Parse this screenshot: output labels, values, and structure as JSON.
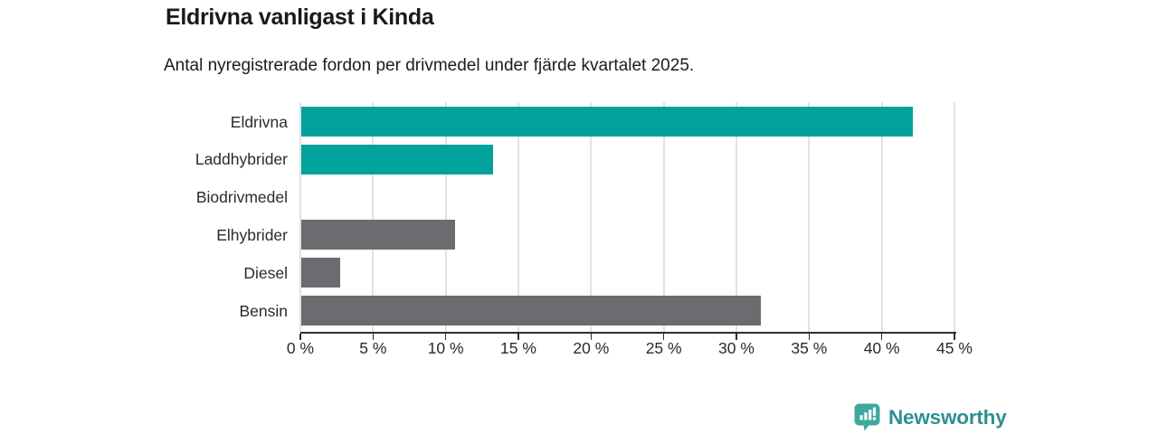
{
  "page": {
    "title": "Eldrivna vanligast i Kinda",
    "subtitle": "Antal nyregistrerade fordon per drivmedel under fjärde kvartalet 2025."
  },
  "branding": {
    "logo_text": "Newsworthy",
    "logo_icon": "bar-chart-speech-bubble-icon",
    "wordmark_color": "#2f8f8f",
    "icon_color": "#3fa89f"
  },
  "colors": {
    "accent_teal": "#00a29b",
    "neutral_gray": "#6b6b70",
    "text_dark": "#1a1a1a",
    "gridline": "#e2e2e2",
    "axis": "#2e2e2e"
  },
  "chart_data": {
    "type": "bar",
    "orientation": "horizontal",
    "title": "Eldrivna vanligast i Kinda",
    "subtitle": "Antal nyregistrerade fordon per drivmedel under fjärde kvartalet 2025.",
    "categories": [
      "Eldrivna",
      "Laddhybrider",
      "Biodrivmedel",
      "Elhybrider",
      "Diesel",
      "Bensin"
    ],
    "values": [
      42.1,
      13.2,
      0,
      10.6,
      2.7,
      31.6
    ],
    "unit": "%",
    "bar_colors": [
      "#00a29b",
      "#00a29b",
      "#6b6b70",
      "#6b6b70",
      "#6b6b70",
      "#6b6b70"
    ],
    "xlim": [
      0,
      45
    ],
    "x_ticks": [
      0,
      5,
      10,
      15,
      20,
      25,
      30,
      35,
      40,
      45
    ],
    "x_tick_labels": [
      "0 %",
      "5 %",
      "10 %",
      "15 %",
      "20 %",
      "25 %",
      "30 %",
      "35 %",
      "40 %",
      "45 %"
    ],
    "grid": "vertical",
    "legend": "none"
  }
}
